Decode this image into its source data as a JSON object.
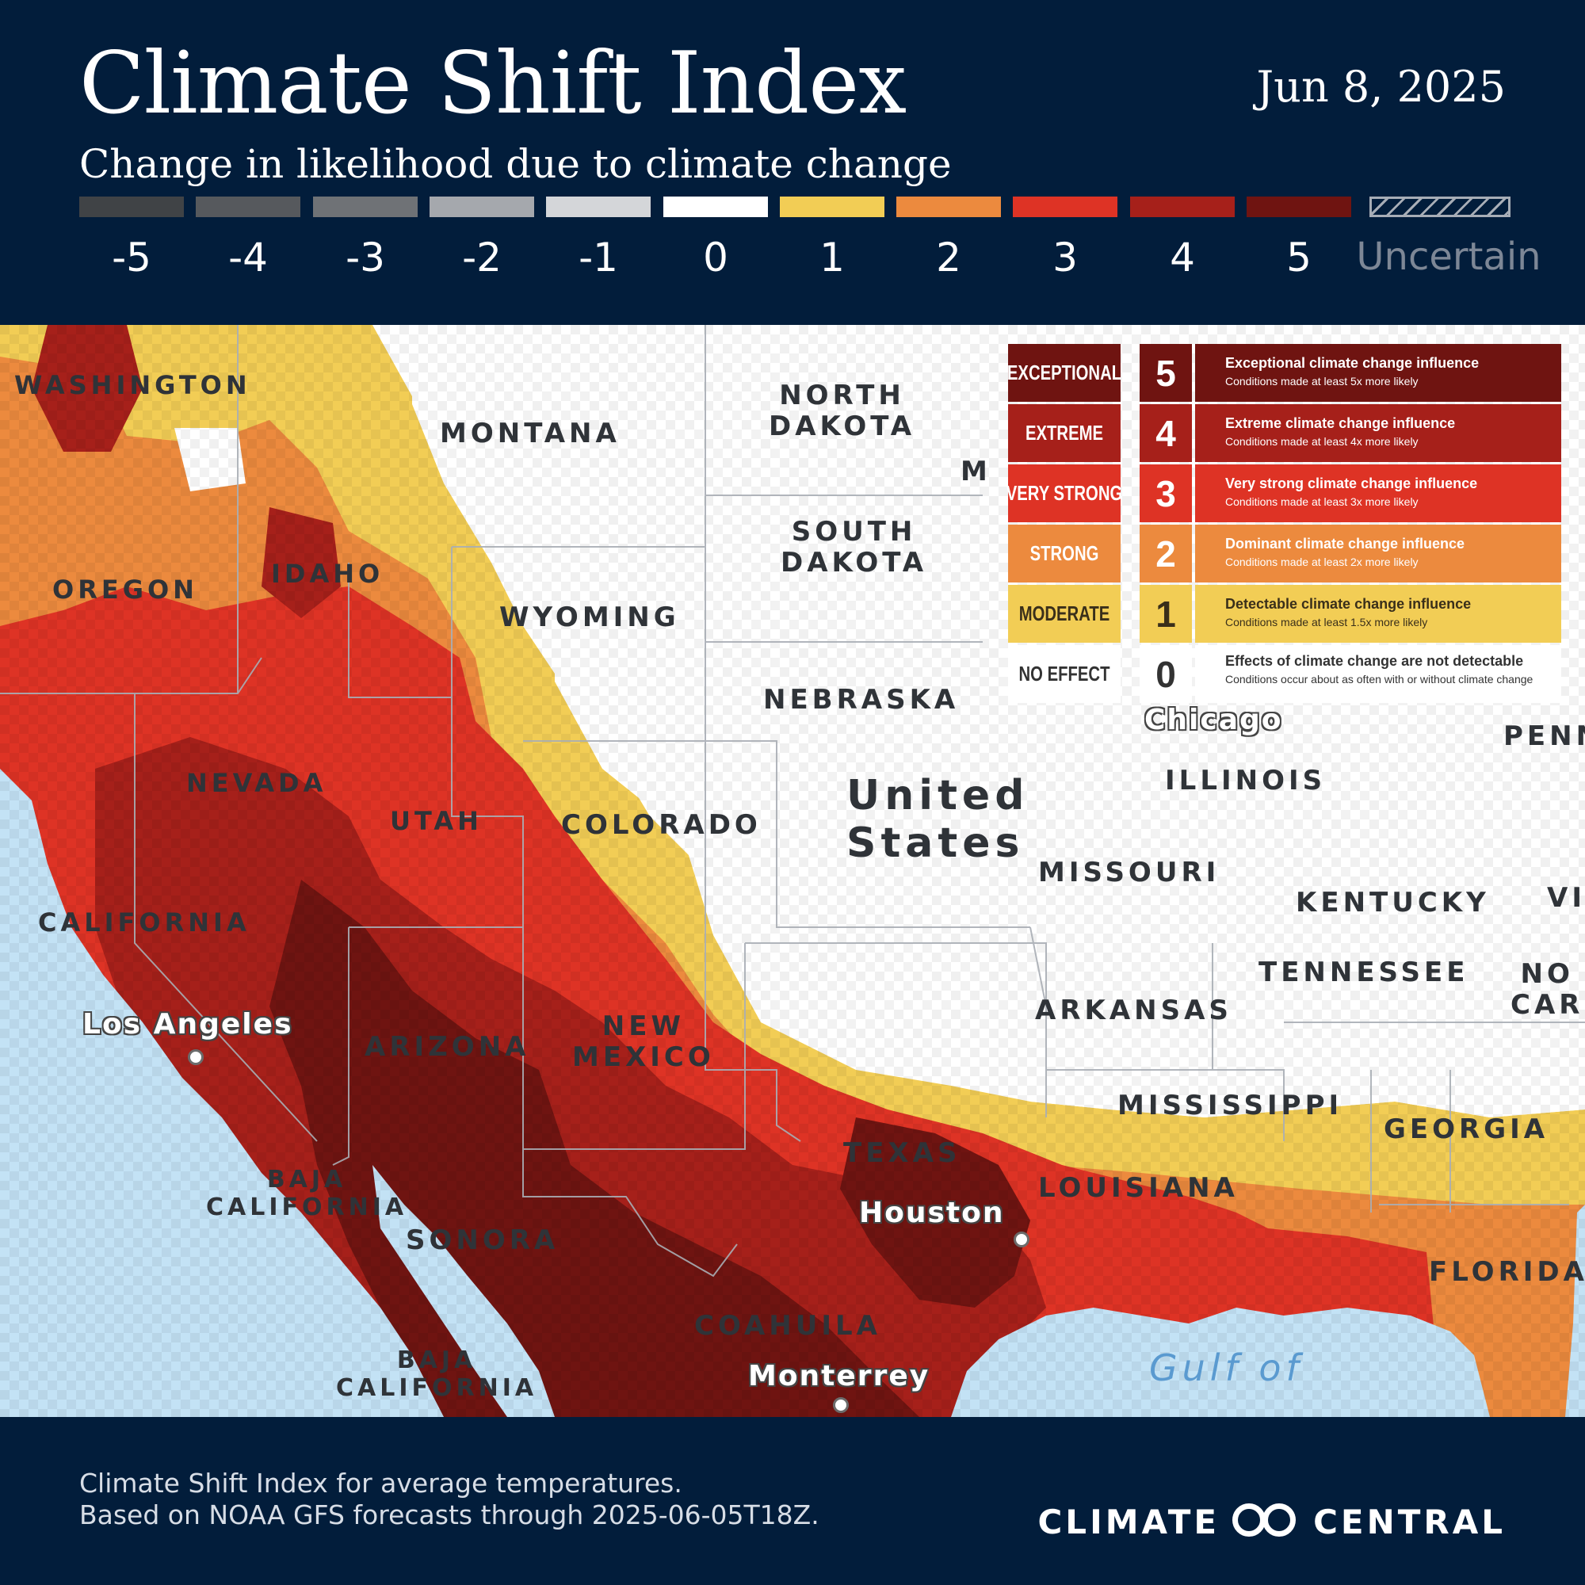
{
  "header": {
    "title": "Climate Shift Index",
    "subtitle": "Change in likelihood due to climate change",
    "date": "Jun 8, 2025"
  },
  "scale": {
    "items": [
      {
        "label": "-5",
        "color": "#404346"
      },
      {
        "label": "-4",
        "color": "#56595d"
      },
      {
        "label": "-3",
        "color": "#6f7276"
      },
      {
        "label": "-2",
        "color": "#a5a8ad"
      },
      {
        "label": "-1",
        "color": "#d4d6d9"
      },
      {
        "label": "0",
        "color": "#ffffff"
      },
      {
        "label": "1",
        "color": "#f2cd55"
      },
      {
        "label": "2",
        "color": "#ec8a3e"
      },
      {
        "label": "3",
        "color": "#de3325"
      },
      {
        "label": "4",
        "color": "#a6201a"
      },
      {
        "label": "5",
        "color": "#6f1411"
      }
    ],
    "uncertain_label": "Uncertain"
  },
  "legend": [
    {
      "name": "EXCEPTIONAL",
      "level": "5",
      "title": "Exceptional climate change influence",
      "detail": "Conditions made at least 5x more likely",
      "bg": "#6f1411",
      "fg": "#ffffff"
    },
    {
      "name": "EXTREME",
      "level": "4",
      "title": "Extreme climate change influence",
      "detail": "Conditions made at least 4x more likely",
      "bg": "#a6201a",
      "fg": "#ffffff"
    },
    {
      "name": "VERY STRONG",
      "level": "3",
      "title": "Very strong climate change influence",
      "detail": "Conditions made at least 3x more likely",
      "bg": "#de3325",
      "fg": "#ffffff"
    },
    {
      "name": "STRONG",
      "level": "2",
      "title": "Dominant climate change influence",
      "detail": "Conditions made at least  2x more likely",
      "bg": "#ec8a3e",
      "fg": "#ffffff"
    },
    {
      "name": "MODERATE",
      "level": "1",
      "title": "Detectable climate change influence",
      "detail": "Conditions made at least 1.5x more likely",
      "bg": "#f2cd55",
      "fg": "#3a2f1a"
    },
    {
      "name": "NO EFFECT",
      "level": "0",
      "title": "Effects of climate change are not detectable",
      "detail": "Conditions occur about as often with or without climate change",
      "bg": "#ffffff",
      "fg": "#333333"
    }
  ],
  "map": {
    "regions": {
      "washington": "WASHINGTON",
      "montana": "MONTANA",
      "north_dakota": "NORTH\nDAKOTA",
      "south_dakota": "SOUTH\nDAKOTA",
      "oregon": "OREGON",
      "idaho": "IDAHO",
      "wyoming": "WYOMING",
      "nebraska": "NEBRASKA",
      "nevada": "NEVADA",
      "utah": "UTAH",
      "colorado": "COLORADO",
      "california": "CALIFORNIA",
      "arizona": "ARIZONA",
      "new_mexico": "NEW\nMEXICO",
      "texas": "TEXAS",
      "united_states": "United\nStates",
      "illinois": "ILLINOIS",
      "missouri": "MISSOURI",
      "kentucky": "KENTUCKY",
      "tennessee": "TENNESSEE",
      "arkansas": "ARKANSAS",
      "mississippi": "MISSISSIPPI",
      "georgia": "GEORGIA",
      "louisiana": "LOUISIANA",
      "florida": "FLORIDA",
      "baja_california": "BAJA\nCALIFORNIA",
      "sonora": "SONORA",
      "coahuila": "COAHUILA",
      "baja_california_sur": "BAJA\nCALIFORNIA",
      "gulf": "Gulf of",
      "minnesota_partial": "M",
      "penn_partial": "PENN",
      "virginia_partial": "VI",
      "north_carolina_partial": "NO\nCAR"
    },
    "cities": {
      "los_angeles": "Los Angeles",
      "houston": "Houston",
      "monterrey": "Monterrey",
      "chicago": "Chicago"
    }
  },
  "footer": {
    "line1": "Climate Shift Index for average temperatures.",
    "line2": "Based on NOAA GFS forecasts through 2025-06-05T18Z.",
    "logo_left": "CLIMATE",
    "logo_right": "CENTRAL"
  }
}
